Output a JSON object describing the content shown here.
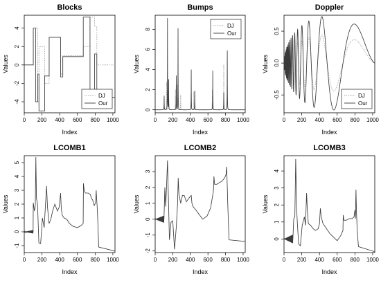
{
  "chart_data": [
    {
      "type": "line",
      "title": "Blocks",
      "xlabel": "Index",
      "ylabel": "Values",
      "xlim": [
        0,
        1024
      ],
      "ylim": [
        -5.2,
        5.4
      ],
      "xticks": [
        0,
        200,
        400,
        600,
        800,
        1000
      ],
      "yticks": [
        -4,
        -2,
        0,
        2,
        4
      ],
      "legend": {
        "position": "bottom-right",
        "entries": [
          "DJ",
          "Our"
        ]
      },
      "series": [
        {
          "name": "DJ",
          "style": "dotted",
          "color": "#9a9a9a",
          "x": [
            0,
            102,
            102,
            153,
            153,
            166,
            166,
            230,
            230,
            281,
            281,
            410,
            410,
            435,
            435,
            512,
            512,
            666,
            666,
            742,
            742,
            794,
            794,
            819,
            819,
            896,
            896,
            1024
          ],
          "y": [
            0,
            0,
            4,
            4,
            -4,
            -4,
            2,
            2,
            -2,
            -2,
            3,
            3,
            -1,
            -1,
            1,
            1,
            1,
            1,
            2,
            2,
            5.2,
            5.2,
            4.2,
            4.2,
            0,
            0,
            0,
            0
          ]
        },
        {
          "name": "Our",
          "style": "solid",
          "color": "#3a3a3a",
          "x": [
            0,
            102,
            102,
            128,
            128,
            153,
            153,
            166,
            166,
            230,
            230,
            281,
            281,
            410,
            410,
            435,
            435,
            512,
            512,
            666,
            666,
            742,
            742,
            794,
            794,
            819,
            819,
            1024
          ],
          "y": [
            0,
            0,
            4,
            4,
            -4,
            -4,
            -1,
            -1,
            -5,
            -5,
            -1.2,
            -1.2,
            3,
            3,
            -1.3,
            -1.3,
            0.9,
            0.9,
            0.9,
            0.9,
            5.2,
            5.2,
            -4,
            -4,
            1.2,
            1.2,
            -3.5,
            -3.5
          ]
        }
      ]
    },
    {
      "type": "line",
      "title": "Bumps",
      "xlabel": "Index",
      "ylabel": "Values",
      "xlim": [
        0,
        1024
      ],
      "ylim": [
        -0.3,
        9.4
      ],
      "xticks": [
        0,
        200,
        400,
        600,
        800,
        1000
      ],
      "yticks": [
        0,
        2,
        4,
        6,
        8
      ],
      "legend": {
        "position": "top-right",
        "entries": [
          "DJ",
          "Our"
        ]
      },
      "series": [
        {
          "name": "DJ",
          "style": "dotted",
          "color": "#9a9a9a",
          "peaks": [
            [
              102,
              1.3
            ],
            [
              130,
              2.8
            ],
            [
              153,
              3.0
            ],
            [
              230,
              2.0
            ],
            [
              250,
              2.5
            ],
            [
              290,
              1.5
            ],
            [
              410,
              2.0
            ],
            [
              440,
              1.8
            ],
            [
              650,
              2.0
            ],
            [
              780,
              4.5
            ],
            [
              820,
              5.0
            ]
          ]
        },
        {
          "name": "Our",
          "style": "solid",
          "color": "#3a3a3a",
          "peaks": [
            [
              102,
              1.4
            ],
            [
              140,
              9.1
            ],
            [
              153,
              3.0
            ],
            [
              240,
              3.4
            ],
            [
              260,
              8.1
            ],
            [
              410,
              4.0
            ],
            [
              450,
              1.9
            ],
            [
              655,
              3.9
            ],
            [
              780,
              1.7
            ],
            [
              820,
              5.9
            ]
          ]
        }
      ]
    },
    {
      "type": "line",
      "title": "Doppler",
      "xlabel": "Index",
      "ylabel": "Values",
      "xlim": [
        0,
        1024
      ],
      "ylim": [
        -0.78,
        0.75
      ],
      "xticks": [
        0,
        200,
        400,
        600,
        800,
        1000
      ],
      "yticks": [
        -0.5,
        0.0,
        0.5
      ],
      "legend": {
        "position": "bottom-right",
        "entries": [
          "DJ",
          "Our"
        ]
      },
      "series": [
        {
          "name": "DJ",
          "style": "dotted",
          "color": "#9a9a9a",
          "amplitude_scale": 0.6
        },
        {
          "name": "Our",
          "style": "solid",
          "color": "#3a3a3a",
          "amplitude_scale": 1.0
        }
      ]
    },
    {
      "type": "line",
      "title": "LCOMB1",
      "xlabel": "Index",
      "ylabel": "Values",
      "xlim": [
        0,
        1024
      ],
      "ylim": [
        -1.5,
        5.5
      ],
      "xticks": [
        0,
        200,
        400,
        600,
        800,
        1000
      ],
      "yticks": [
        -1,
        0,
        1,
        2,
        3,
        4,
        5
      ],
      "series": [
        {
          "name": "",
          "style": "solid",
          "color": "#3a3a3a",
          "x": [
            0,
            100,
            102,
            115,
            125,
            131,
            138,
            150,
            165,
            185,
            205,
            225,
            240,
            252,
            262,
            280,
            300,
            320,
            345,
            375,
            395,
            410,
            418,
            428,
            450,
            480,
            510,
            550,
            600,
            640,
            665,
            668,
            676,
            690,
            720,
            745,
            760,
            772,
            790,
            805,
            812,
            815,
            822,
            830,
            840,
            1024
          ],
          "y": [
            -0.05,
            0,
            2.1,
            1.5,
            1.9,
            5.4,
            2.4,
            2.0,
            -0.8,
            -0.85,
            1.0,
            0.3,
            2.0,
            3.3,
            1.8,
            0.6,
            0.9,
            1.5,
            2.0,
            1.5,
            1.8,
            2.8,
            1.7,
            1.2,
            1.0,
            0.9,
            0.6,
            0.4,
            0.3,
            0.45,
            0.6,
            3.5,
            3.0,
            2.8,
            2.8,
            2.7,
            2.4,
            2.3,
            1.9,
            2.1,
            3.0,
            2.6,
            1.9,
            0.8,
            -1.1,
            -1.4
          ]
        }
      ]
    },
    {
      "type": "line",
      "title": "LCOMB2",
      "xlabel": "Index",
      "ylabel": "Values",
      "xlim": [
        0,
        1024
      ],
      "ylim": [
        -2.1,
        4.0
      ],
      "xticks": [
        0,
        200,
        400,
        600,
        800,
        1000
      ],
      "yticks": [
        -2,
        -1,
        0,
        1,
        2,
        3
      ],
      "series": [
        {
          "name": "",
          "style": "solid",
          "color": "#3a3a3a",
          "x": [
            0,
            100,
            110,
            120,
            130,
            140,
            150,
            162,
            180,
            200,
            220,
            240,
            255,
            262,
            270,
            290,
            310,
            330,
            355,
            380,
            395,
            410,
            418,
            430,
            460,
            500,
            540,
            590,
            630,
            660,
            665,
            668,
            676,
            700,
            730,
            760,
            790,
            805,
            812,
            816,
            825,
            840,
            1024
          ],
          "y": [
            0,
            0,
            2.0,
            0.8,
            2.1,
            3.7,
            1.5,
            -1.3,
            -0.2,
            -0.1,
            -1.9,
            -0.5,
            1.0,
            2.6,
            1.6,
            1.0,
            1.5,
            1.5,
            1.1,
            1.3,
            1.4,
            1.5,
            1.0,
            0.8,
            0.6,
            0.3,
            0.0,
            0.2,
            0.7,
            1.7,
            2.0,
            2.7,
            2.2,
            2.2,
            2.3,
            2.4,
            2.6,
            2.8,
            3.3,
            2.8,
            1.0,
            -1.3,
            -1.4
          ]
        }
      ]
    },
    {
      "type": "line",
      "title": "LCOMB3",
      "xlabel": "Index",
      "ylabel": "Values",
      "xlim": [
        0,
        1024
      ],
      "ylim": [
        -0.8,
        4.9
      ],
      "xticks": [
        0,
        200,
        400,
        600,
        800,
        1000
      ],
      "yticks": [
        0,
        1,
        2,
        3,
        4
      ],
      "series": [
        {
          "name": "",
          "style": "solid",
          "color": "#3a3a3a",
          "x": [
            0,
            100,
            110,
            122,
            132,
            142,
            152,
            165,
            185,
            205,
            230,
            242,
            255,
            264,
            275,
            300,
            330,
            355,
            385,
            400,
            410,
            420,
            440,
            480,
            520,
            560,
            600,
            640,
            665,
            668,
            676,
            700,
            740,
            770,
            790,
            800,
            806,
            812,
            818,
            826,
            840,
            1024
          ],
          "y": [
            0,
            0,
            1.2,
            1.3,
            4.7,
            1.8,
            0.8,
            -0.3,
            -0.4,
            0.8,
            1.3,
            0.8,
            2.7,
            1.6,
            0.9,
            0.8,
            0.6,
            0.5,
            0.6,
            0.9,
            1.8,
            1.3,
            0.9,
            0.6,
            0.3,
            0.1,
            -0.1,
            0.2,
            0.5,
            1.4,
            1.1,
            1.1,
            1.2,
            1.2,
            1.3,
            1.7,
            1.2,
            2.9,
            1.5,
            0.5,
            -0.45,
            -0.75
          ]
        }
      ]
    }
  ]
}
